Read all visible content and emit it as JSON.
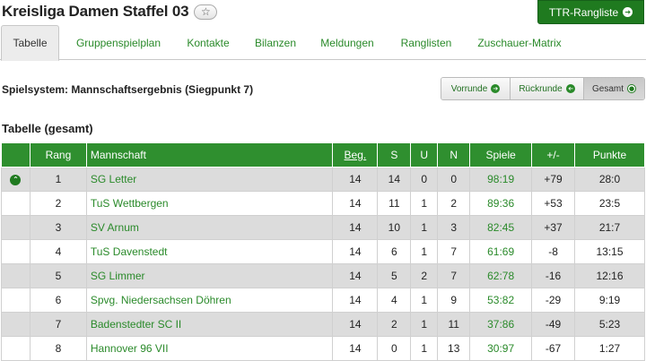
{
  "header": {
    "title": "Kreisliga Damen Staffel 03",
    "favorite_icon": "☆",
    "ttr_button": "TTR-Rangliste",
    "arrow_glyph": "➔"
  },
  "tabs": [
    {
      "label": "Tabelle",
      "active": true
    },
    {
      "label": "Gruppenspielplan"
    },
    {
      "label": "Kontakte"
    },
    {
      "label": "Bilanzen"
    },
    {
      "label": "Meldungen"
    },
    {
      "label": "Ranglisten"
    },
    {
      "label": "Zuschauer-Matrix"
    }
  ],
  "spielsystem": "Spielsystem: Mannschaftsergebnis (Siegpunkt 7)",
  "rounds": [
    {
      "label": "Vorrunde",
      "icon": "➔"
    },
    {
      "label": "Rückrunde",
      "icon": "➔"
    },
    {
      "label": "Gesamt",
      "icon": "●",
      "active": true
    }
  ],
  "section_title": "Tabelle (gesamt)",
  "table": {
    "headers": {
      "rang": "Rang",
      "mannschaft": "Mannschaft",
      "beg": "Beg.",
      "s": "S",
      "u": "U",
      "n": "N",
      "spiele": "Spiele",
      "diff": "+/-",
      "punkte": "Punkte"
    },
    "rows": [
      {
        "rang": "1",
        "team": "SG Letter",
        "beg": "14",
        "s": "14",
        "u": "0",
        "n": "0",
        "spiele": "98:19",
        "diff": "+79",
        "punkte": "28:0",
        "promotion": true
      },
      {
        "rang": "2",
        "team": "TuS Wettbergen",
        "beg": "14",
        "s": "11",
        "u": "1",
        "n": "2",
        "spiele": "89:36",
        "diff": "+53",
        "punkte": "23:5"
      },
      {
        "rang": "3",
        "team": "SV Arnum",
        "beg": "14",
        "s": "10",
        "u": "1",
        "n": "3",
        "spiele": "82:45",
        "diff": "+37",
        "punkte": "21:7"
      },
      {
        "rang": "4",
        "team": "TuS Davenstedt",
        "beg": "14",
        "s": "6",
        "u": "1",
        "n": "7",
        "spiele": "61:69",
        "diff": "-8",
        "punkte": "13:15"
      },
      {
        "rang": "5",
        "team": "SG Limmer",
        "beg": "14",
        "s": "5",
        "u": "2",
        "n": "7",
        "spiele": "62:78",
        "diff": "-16",
        "punkte": "12:16"
      },
      {
        "rang": "6",
        "team": "Spvg. Niedersachsen Döhren",
        "beg": "14",
        "s": "4",
        "u": "1",
        "n": "9",
        "spiele": "53:82",
        "diff": "-29",
        "punkte": "9:19"
      },
      {
        "rang": "7",
        "team": "Badenstedter SC II",
        "beg": "14",
        "s": "2",
        "u": "1",
        "n": "11",
        "spiele": "37:86",
        "diff": "-49",
        "punkte": "5:23"
      },
      {
        "rang": "8",
        "team": "Hannover 96 VII",
        "beg": "14",
        "s": "0",
        "u": "1",
        "n": "13",
        "spiele": "30:97",
        "diff": "-67",
        "punkte": "1:27"
      }
    ],
    "promotion_icon": "⌃"
  },
  "colors": {
    "accent_green": "#2f8f2f",
    "link_green": "#2a8a2a",
    "row_shade": "#dcdcdc"
  }
}
